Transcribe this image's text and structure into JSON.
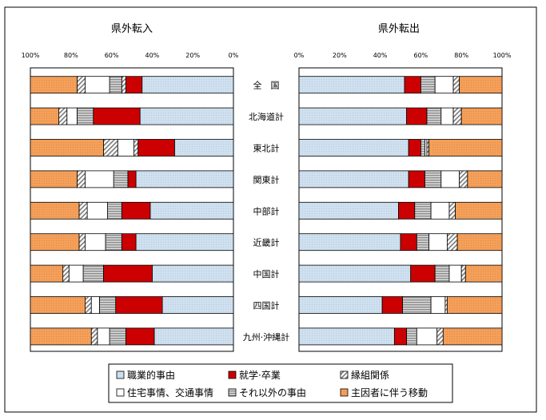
{
  "chart_data": [
    {
      "type": "bar",
      "orientation": "horizontal",
      "stacked": true,
      "percent": true,
      "direction": "right-to-left",
      "title": "県外転入",
      "xlim": [
        0,
        100
      ],
      "x_ticks": [
        "100%",
        "80%",
        "60%",
        "40%",
        "20%",
        "0%"
      ],
      "categories": [
        "全　国",
        "北海道計",
        "東北計",
        "関東計",
        "中部計",
        "近畿計",
        "中国計",
        "四国計",
        "九州·沖縄計"
      ],
      "series": [
        {
          "name": "職業的事由",
          "values": [
            45,
            46,
            29,
            48,
            41,
            48,
            40,
            35,
            39
          ]
        },
        {
          "name": "就学·卒業",
          "values": [
            8,
            23,
            18,
            4,
            14,
            7,
            24,
            23,
            14
          ]
        },
        {
          "name": "縁組関係",
          "values": [
            2,
            0,
            2,
            0,
            0,
            0,
            0,
            0,
            0
          ]
        },
        {
          "name": "それ以外の事由",
          "values": [
            6,
            8,
            0,
            7,
            7,
            8,
            10,
            8,
            8
          ]
        },
        {
          "name": "住宅事情、交通事情",
          "values": [
            12,
            5,
            8,
            14,
            10,
            10,
            7,
            4,
            6
          ]
        },
        {
          "name": "縁組関係",
          "values": [
            4,
            4,
            7,
            4,
            4,
            3,
            3,
            3,
            3
          ]
        },
        {
          "name": "主因者に伴う移動",
          "values": [
            23,
            14,
            36,
            23,
            24,
            24,
            16,
            27,
            30
          ]
        }
      ]
    },
    {
      "type": "bar",
      "orientation": "horizontal",
      "stacked": true,
      "percent": true,
      "title": "県外転出",
      "xlim": [
        0,
        100
      ],
      "x_ticks": [
        "0%",
        "20%",
        "40%",
        "60%",
        "80%",
        "100%"
      ],
      "categories": [
        "全　国",
        "北海道計",
        "東北計",
        "関東計",
        "中部計",
        "近畿計",
        "中国計",
        "四国計",
        "九州·沖縄計"
      ],
      "series": [
        {
          "name": "職業的事由",
          "values": [
            52,
            53,
            54,
            54,
            49,
            50,
            55,
            41,
            47
          ]
        },
        {
          "name": "就学·卒業",
          "values": [
            8,
            10,
            6,
            8,
            8,
            8,
            12,
            10,
            6
          ]
        },
        {
          "name": "それ以外の事由",
          "values": [
            7,
            7,
            2,
            8,
            8,
            6,
            7,
            14,
            5
          ]
        },
        {
          "name": "住宅事情、交通事情",
          "values": [
            9,
            6,
            1,
            9,
            9,
            9,
            6,
            7,
            10
          ]
        },
        {
          "name": "縁組関係",
          "values": [
            3,
            4,
            1,
            4,
            3,
            5,
            2,
            1,
            3
          ]
        },
        {
          "name": "主因者に伴う移動",
          "values": [
            21,
            20,
            36,
            17,
            23,
            22,
            18,
            27,
            29
          ]
        }
      ]
    }
  ],
  "legend": [
    {
      "label": "職業的事由",
      "fill": "pat-blue"
    },
    {
      "label": "就学·卒業",
      "fill": "#cc0000"
    },
    {
      "label": "縁組関係",
      "fill": "pat-hatch"
    },
    {
      "label": "住宅事情、交通事情",
      "fill": "#ffffff"
    },
    {
      "label": "それ以外の事由",
      "fill": "pat-stripe"
    },
    {
      "label": "主因者に伴う移動",
      "fill": "pat-orange"
    }
  ],
  "legend_placement": "bottom",
  "colors": {
    "blue": "#cfe0ef",
    "red": "#cc0000",
    "orange": "#f5a05a",
    "stripe": "#a8a8a8"
  }
}
